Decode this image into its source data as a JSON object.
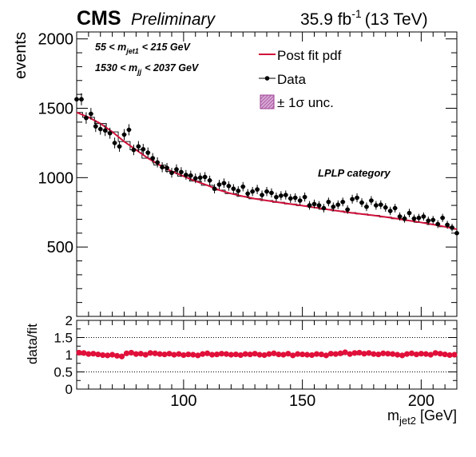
{
  "header": {
    "experiment": "CMS",
    "status": "Preliminary",
    "lumi_value": "35.9 fb",
    "lumi_exp": "-1",
    "energy": "(13 TeV)"
  },
  "cuts": {
    "line1": {
      "pre": "55 < m",
      "sub": "jet1",
      "post": "< 215 GeV"
    },
    "line2": {
      "pre": "1530 < m",
      "sub": "jj",
      "post": "< 2037 GeV"
    }
  },
  "category_label": "LPLP category",
  "legend": {
    "fit": "Post fit pdf",
    "data": "Data",
    "unc": "± 1σ unc."
  },
  "colors": {
    "fit": "#d0103a",
    "data": "#000000",
    "ratio": "#e0103a",
    "unc": "#9b3f90"
  },
  "chart_data": [
    {
      "type": "scatter",
      "panel": "main",
      "ylabel": "events",
      "xlim": [
        55,
        215
      ],
      "ylim": [
        0,
        2050
      ],
      "xticks": [
        100,
        150,
        200
      ],
      "yticks": [
        500,
        1000,
        1500,
        2000
      ],
      "yticklabels": [
        "500",
        "1000",
        "1500",
        "2000"
      ],
      "series": [
        {
          "name": "Data",
          "x": [
            55,
            57,
            59,
            61,
            63,
            65,
            67,
            69,
            71,
            73,
            75,
            77,
            79,
            81,
            83,
            85,
            87,
            89,
            91,
            93,
            95,
            97,
            99,
            101,
            103,
            105,
            107,
            109,
            111,
            113,
            115,
            117,
            119,
            121,
            123,
            125,
            127,
            129,
            131,
            133,
            135,
            137,
            139,
            141,
            143,
            145,
            147,
            149,
            151,
            153,
            155,
            157,
            159,
            161,
            163,
            165,
            167,
            169,
            171,
            173,
            175,
            177,
            179,
            181,
            183,
            185,
            187,
            189,
            191,
            193,
            195,
            197,
            199,
            201,
            203,
            205,
            207,
            209,
            211,
            213,
            215
          ],
          "y": [
            1565,
            1565,
            1430,
            1460,
            1370,
            1350,
            1340,
            1320,
            1250,
            1225,
            1310,
            1345,
            1200,
            1225,
            1205,
            1180,
            1140,
            1110,
            1075,
            1070,
            1035,
            1060,
            1040,
            1020,
            1015,
            995,
            1000,
            1005,
            980,
            920,
            950,
            960,
            940,
            920,
            905,
            935,
            885,
            900,
            915,
            875,
            900,
            890,
            860,
            870,
            875,
            850,
            855,
            835,
            860,
            800,
            810,
            800,
            780,
            825,
            790,
            805,
            825,
            770,
            845,
            855,
            820,
            790,
            835,
            800,
            805,
            785,
            760,
            780,
            720,
            705,
            745,
            705,
            710,
            720,
            690,
            695,
            665,
            710,
            660,
            640,
            600
          ]
        },
        {
          "name": "Post fit pdf",
          "x": [
            55,
            60,
            65,
            70,
            75,
            80,
            85,
            90,
            95,
            100,
            105,
            110,
            115,
            120,
            125,
            130,
            135,
            140,
            145,
            150,
            155,
            160,
            165,
            170,
            175,
            180,
            185,
            190,
            195,
            200,
            205,
            210,
            215
          ],
          "y": [
            1470,
            1435,
            1390,
            1330,
            1260,
            1200,
            1140,
            1090,
            1045,
            1010,
            975,
            945,
            910,
            885,
            865,
            848,
            835,
            822,
            810,
            798,
            785,
            772,
            760,
            748,
            738,
            728,
            716,
            704,
            690,
            677,
            662,
            646,
            628
          ]
        }
      ]
    },
    {
      "type": "scatter",
      "panel": "ratio",
      "ylabel": "data/fit",
      "xlabel_main": "m",
      "xlabel_sub": "jet2",
      "xlabel_unit": "[GeV]",
      "xlim": [
        55,
        215
      ],
      "ylim": [
        0,
        2
      ],
      "xticks": [
        100,
        150,
        200
      ],
      "xticklabels": [
        "100",
        "150",
        "200"
      ],
      "yticks": [
        0,
        0.5,
        1,
        1.5,
        2
      ],
      "yticklabels": [
        "0",
        "0.5",
        "1",
        "1.5",
        "2"
      ],
      "series": [
        {
          "name": "data/fit",
          "x": [
            56,
            58,
            60,
            62,
            64,
            66,
            68,
            70,
            72,
            74,
            76,
            78,
            80,
            82,
            84,
            86,
            88,
            90,
            92,
            94,
            96,
            98,
            100,
            102,
            104,
            106,
            108,
            110,
            112,
            114,
            116,
            118,
            120,
            122,
            124,
            126,
            128,
            130,
            132,
            134,
            136,
            138,
            140,
            142,
            144,
            146,
            148,
            150,
            152,
            154,
            156,
            158,
            160,
            162,
            164,
            166,
            168,
            170,
            172,
            174,
            176,
            178,
            180,
            182,
            184,
            186,
            188,
            190,
            192,
            194,
            196,
            198,
            200,
            202,
            204,
            206,
            208,
            210,
            212,
            214
          ],
          "y": [
            1.06,
            1.05,
            1.02,
            1.03,
            1.01,
            0.99,
            0.98,
            1.0,
            0.97,
            0.95,
            1.04,
            1.06,
            1.02,
            1.03,
            1.0,
            1.05,
            1.04,
            1.02,
            1.01,
            1.03,
            1.0,
            1.02,
            0.99,
            1.01,
            1.0,
            0.98,
            1.02,
            1.04,
            1.0,
            1.01,
            1.03,
            1.02,
            1.0,
            1.01,
            0.99,
            1.02,
            1.01,
            1.03,
            1.0,
            0.99,
            1.02,
            1.04,
            1.01,
            1.0,
            1.03,
            0.98,
            1.02,
            1.01,
            1.0,
            0.99,
            1.02,
            1.01,
            0.98,
            1.03,
            1.02,
            1.04,
            1.07,
            1.02,
            1.05,
            1.06,
            1.03,
            1.05,
            1.02,
            1.01,
            1.04,
            1.03,
            1.02,
            1.0,
            0.98,
            1.02,
            1.04,
            1.01,
            1.03,
            1.02,
            1.0,
            1.05,
            1.03,
            1.01,
            0.99,
            1.0
          ]
        }
      ]
    }
  ]
}
